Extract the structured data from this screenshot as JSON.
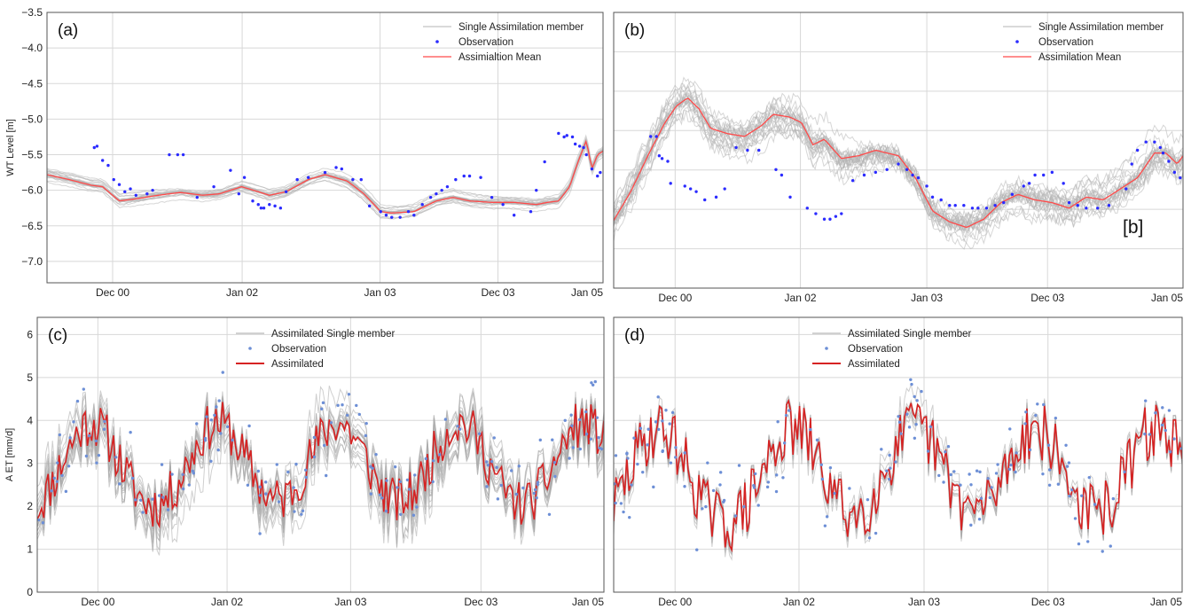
{
  "chart_data": [
    {
      "panel_label": "(a)",
      "type": "line",
      "ylabel": "WT Level [m]",
      "x_tick_labels": [
        "Dec 00",
        "Jan 02",
        "Jan 03",
        "Dec 03",
        "Jan 05"
      ],
      "x_ticks_at": [
        0.118,
        0.351,
        0.599,
        0.811,
        1.0
      ],
      "ylim": [
        -7.3,
        -3.5
      ],
      "y_ticks": [
        -7.0,
        -6.5,
        -6.0,
        -5.5,
        -5.0,
        -4.5,
        -4.0,
        -3.5
      ],
      "y_tick_labels": [
        "−7.0",
        "−6.5",
        "−6.0",
        "−5.5",
        "−5.0",
        "−4.5",
        "−4.0",
        "−3.5"
      ],
      "grid": true,
      "legend_position": "top-right",
      "legend": [
        "Single Assimilation member",
        "Observation",
        "Assimialtion Mean"
      ],
      "colors": {
        "members": "#b4b4b4",
        "observation": "#2b2bff",
        "mean": "#ff4a4a"
      },
      "member_count": 22,
      "member_spread": 0.12,
      "series": [
        {
          "role": "mean",
          "x": [
            0,
            0.04,
            0.08,
            0.1,
            0.13,
            0.16,
            0.2,
            0.24,
            0.28,
            0.31,
            0.35,
            0.38,
            0.4,
            0.43,
            0.47,
            0.5,
            0.54,
            0.57,
            0.6,
            0.62,
            0.66,
            0.7,
            0.73,
            0.76,
            0.8,
            0.84,
            0.88,
            0.9,
            0.92,
            0.94,
            0.955,
            0.97,
            0.98,
            0.99,
            1.0
          ],
          "y": [
            -5.78,
            -5.85,
            -5.93,
            -5.95,
            -6.15,
            -6.12,
            -6.07,
            -6.03,
            -6.07,
            -6.05,
            -5.95,
            -6.02,
            -6.07,
            -6.02,
            -5.85,
            -5.78,
            -5.87,
            -6.05,
            -6.3,
            -6.32,
            -6.3,
            -6.15,
            -6.1,
            -6.15,
            -6.17,
            -6.17,
            -6.2,
            -6.17,
            -6.15,
            -5.95,
            -5.6,
            -5.3,
            -5.7,
            -5.5,
            -5.45
          ]
        },
        {
          "role": "observation",
          "x": [
            0.085,
            0.09,
            0.1,
            0.11,
            0.12,
            0.13,
            0.14,
            0.15,
            0.16,
            0.18,
            0.19,
            0.22,
            0.235,
            0.245,
            0.27,
            0.3,
            0.33,
            0.345,
            0.355,
            0.37,
            0.38,
            0.385,
            0.39,
            0.4,
            0.41,
            0.42,
            0.43,
            0.45,
            0.47,
            0.5,
            0.52,
            0.53,
            0.55,
            0.565,
            0.58,
            0.6,
            0.61,
            0.62,
            0.635,
            0.65,
            0.66,
            0.675,
            0.69,
            0.7,
            0.71,
            0.72,
            0.735,
            0.75,
            0.76,
            0.78,
            0.8,
            0.82,
            0.84,
            0.87,
            0.88,
            0.895,
            0.92,
            0.93,
            0.935,
            0.945,
            0.95,
            0.958,
            0.965,
            0.97,
            0.98,
            0.99,
            0.995
          ],
          "y": [
            -5.4,
            -5.38,
            -5.58,
            -5.65,
            -5.85,
            -5.92,
            -6.02,
            -5.98,
            -6.07,
            -6.05,
            -6.0,
            -5.5,
            -5.5,
            -5.5,
            -6.1,
            -5.95,
            -5.72,
            -6.05,
            -5.82,
            -6.15,
            -6.2,
            -6.25,
            -6.25,
            -6.2,
            -6.22,
            -6.25,
            -6.02,
            -5.85,
            -5.82,
            -5.75,
            -5.68,
            -5.7,
            -5.85,
            -5.85,
            -6.22,
            -6.3,
            -6.35,
            -6.38,
            -6.38,
            -6.3,
            -6.35,
            -6.2,
            -6.1,
            -6.05,
            -6.0,
            -5.95,
            -5.85,
            -5.8,
            -5.8,
            -5.82,
            -6.1,
            -6.2,
            -6.35,
            -6.3,
            -6.0,
            -5.6,
            -5.2,
            -5.25,
            -5.23,
            -5.25,
            -5.35,
            -5.38,
            -5.4,
            -5.5,
            -5.7,
            -5.8,
            -5.75
          ]
        }
      ]
    },
    {
      "panel_label": "(b)",
      "type": "line",
      "annotation": "[b]",
      "x_tick_labels": [
        "Dec 00",
        "Jan 02",
        "Jan 03",
        "Dec 03",
        "Jan 05"
      ],
      "x_ticks_at": [
        0.108,
        0.328,
        0.55,
        0.762,
        1.0
      ],
      "ylim": [
        0,
        1
      ],
      "grid": true,
      "legend_position": "top-right",
      "legend": [
        "Single Assimilation member",
        "Observation",
        "Assimilation Mean"
      ],
      "colors": {
        "members": "#b4b4b4",
        "observation": "#2b2bff",
        "mean": "#ff4a4a"
      },
      "member_count": 22,
      "member_spread": 0.3,
      "series": [
        {
          "role": "mean",
          "x": [
            0,
            0.03,
            0.06,
            0.09,
            0.11,
            0.13,
            0.15,
            0.17,
            0.2,
            0.23,
            0.26,
            0.28,
            0.31,
            0.33,
            0.35,
            0.37,
            0.4,
            0.43,
            0.46,
            0.5,
            0.53,
            0.56,
            0.59,
            0.62,
            0.65,
            0.68,
            0.71,
            0.74,
            0.77,
            0.8,
            0.83,
            0.86,
            0.89,
            0.92,
            0.95,
            0.97,
            0.99,
            1.0
          ],
          "y": [
            0.245,
            0.35,
            0.48,
            0.6,
            0.66,
            0.69,
            0.65,
            0.58,
            0.56,
            0.55,
            0.59,
            0.63,
            0.62,
            0.6,
            0.52,
            0.54,
            0.47,
            0.48,
            0.5,
            0.48,
            0.4,
            0.28,
            0.24,
            0.22,
            0.25,
            0.31,
            0.34,
            0.32,
            0.31,
            0.29,
            0.33,
            0.32,
            0.36,
            0.4,
            0.49,
            0.49,
            0.45,
            0.48
          ]
        },
        {
          "role": "observation",
          "x": [
            0.065,
            0.075,
            0.08,
            0.085,
            0.095,
            0.1,
            0.125,
            0.135,
            0.145,
            0.16,
            0.18,
            0.195,
            0.215,
            0.235,
            0.255,
            0.285,
            0.295,
            0.31,
            0.34,
            0.355,
            0.37,
            0.38,
            0.39,
            0.4,
            0.42,
            0.44,
            0.46,
            0.48,
            0.5,
            0.515,
            0.525,
            0.535,
            0.55,
            0.56,
            0.575,
            0.59,
            0.6,
            0.615,
            0.63,
            0.64,
            0.655,
            0.67,
            0.685,
            0.7,
            0.72,
            0.73,
            0.74,
            0.755,
            0.77,
            0.79,
            0.8,
            0.815,
            0.83,
            0.85,
            0.87,
            0.9,
            0.91,
            0.92,
            0.935,
            0.95,
            0.96,
            0.965,
            0.975,
            0.985,
            0.995
          ],
          "y": [
            0.55,
            0.55,
            0.48,
            0.47,
            0.46,
            0.38,
            0.37,
            0.36,
            0.35,
            0.32,
            0.33,
            0.36,
            0.51,
            0.5,
            0.5,
            0.43,
            0.41,
            0.33,
            0.29,
            0.27,
            0.25,
            0.25,
            0.26,
            0.27,
            0.39,
            0.41,
            0.42,
            0.43,
            0.45,
            0.43,
            0.41,
            0.4,
            0.37,
            0.33,
            0.32,
            0.3,
            0.3,
            0.3,
            0.29,
            0.29,
            0.29,
            0.3,
            0.31,
            0.34,
            0.37,
            0.38,
            0.41,
            0.41,
            0.42,
            0.38,
            0.31,
            0.3,
            0.29,
            0.29,
            0.3,
            0.36,
            0.45,
            0.5,
            0.53,
            0.53,
            0.51,
            0.49,
            0.46,
            0.42,
            0.4
          ]
        }
      ]
    },
    {
      "panel_label": "(c)",
      "type": "line",
      "ylabel": "A ET [mm/d]",
      "x_tick_labels": [
        "Dec 00",
        "Jan 02",
        "Jan 03",
        "Dec 03",
        "Jan 05"
      ],
      "x_ticks_at": [
        0.107,
        0.335,
        0.553,
        0.783,
        1.0
      ],
      "ylim": [
        0,
        6.4
      ],
      "y_ticks": [
        0,
        1,
        2,
        3,
        4,
        5,
        6
      ],
      "y_tick_labels": [
        "0",
        "1",
        "2",
        "3",
        "4",
        "5",
        "6"
      ],
      "grid": true,
      "legend_position": "top-center",
      "legend": [
        "Assimilated Single member",
        "Observation",
        "Assimilated"
      ],
      "colors": {
        "members": "#a8a8a8",
        "observation": "#6d8fd6",
        "mean": "#d62222"
      },
      "member_count": 18,
      "member_spread": 0.45,
      "seasonal": {
        "peaks": [
          0.095,
          0.318,
          0.53,
          0.745,
          0.965
        ],
        "amplitude": 1.75,
        "base": 2.45,
        "noise": 0.55,
        "seed": 11
      }
    },
    {
      "panel_label": "(d)",
      "type": "line",
      "x_tick_labels": [
        "Dec 00",
        "Jan 02",
        "Jan 03",
        "Dec 03",
        "Jan 05"
      ],
      "x_ticks_at": [
        0.108,
        0.326,
        0.546,
        0.764,
        1.0
      ],
      "ylim": [
        0,
        6.4
      ],
      "y_ticks": [
        0,
        1,
        2,
        3,
        4,
        5,
        6
      ],
      "grid": true,
      "legend_position": "top-center",
      "legend": [
        "Assimilated Single member",
        "Observation",
        "Assimilated"
      ],
      "colors": {
        "members": "#a8a8a8",
        "observation": "#6d8fd6",
        "mean": "#d62222"
      },
      "member_count": 12,
      "member_spread": 0.25,
      "seasonal": {
        "peaks": [
          0.08,
          0.315,
          0.53,
          0.74,
          0.955
        ],
        "amplitude": 1.9,
        "base": 2.2,
        "noise": 0.7,
        "seed": 29
      }
    }
  ]
}
